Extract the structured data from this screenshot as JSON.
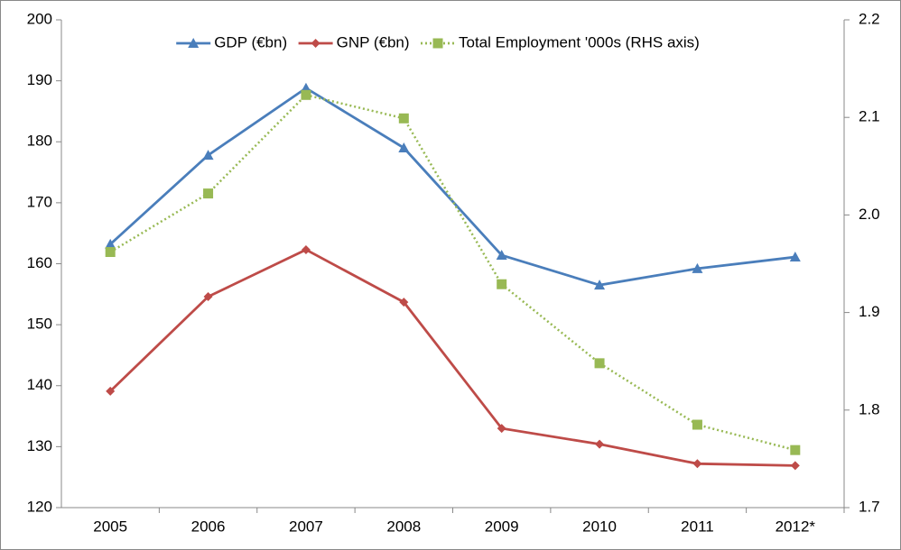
{
  "chart_data": {
    "type": "line",
    "categories": [
      "2005",
      "2006",
      "2007",
      "2008",
      "2009",
      "2010",
      "2011",
      "2012*"
    ],
    "series": [
      {
        "name": "GDP (€bn)",
        "color": "#4a7ebb",
        "marker": "triangle",
        "dash": "solid",
        "values": [
          163.2,
          177.8,
          188.8,
          179.0,
          161.4,
          156.5,
          159.2,
          161.1
        ]
      },
      {
        "name": "GNP (€bn)",
        "color": "#be4b48",
        "marker": "diamond",
        "dash": "solid",
        "values": [
          139.1,
          154.6,
          162.3,
          153.7,
          133.0,
          130.4,
          127.2,
          126.9
        ]
      },
      {
        "name": "Total Employment '000s (RHS axis)",
        "color": "#98b954",
        "marker": "square",
        "dash": "dotted",
        "axis": "y2",
        "values": [
          1.962,
          2.022,
          2.123,
          2.099,
          1.929,
          1.848,
          1.785,
          1.759
        ]
      }
    ],
    "ylim": [
      120,
      200
    ],
    "yticks": [
      120,
      130,
      140,
      150,
      160,
      170,
      180,
      190,
      200
    ],
    "y2lim": [
      1.7,
      2.2
    ],
    "y2ticks": [
      1.7,
      1.8,
      1.9,
      {
        "value": 2,
        "label": "2.0"
      },
      2.1,
      2.2
    ],
    "grid": false,
    "legend": "top"
  }
}
